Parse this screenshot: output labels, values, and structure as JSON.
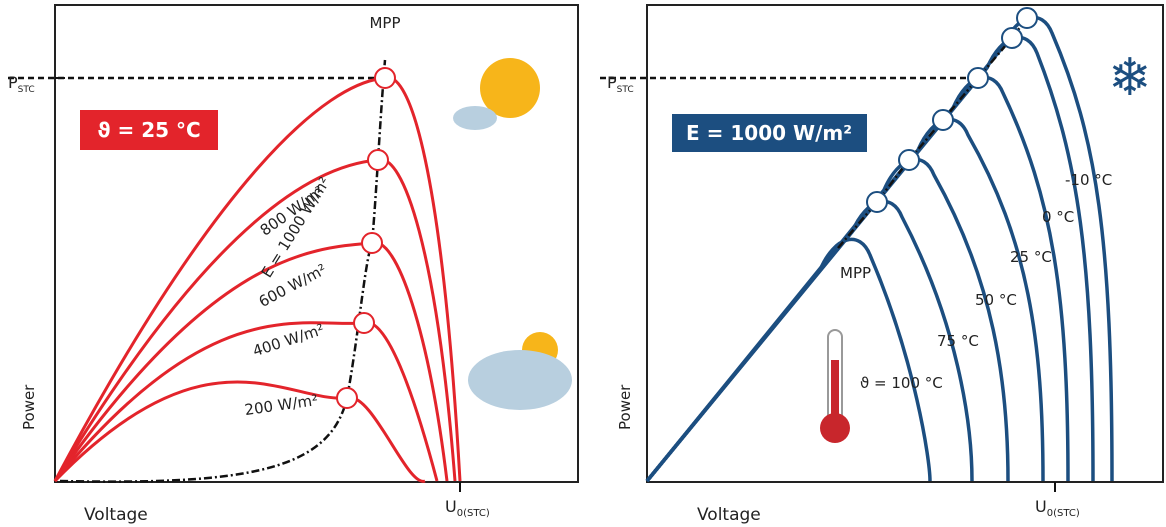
{
  "left": {
    "mpp_label": "MPP",
    "p_stc": {
      "main": "P",
      "sub": "STC"
    },
    "badge": "ϑ = 25 °C",
    "curve_labels": [
      "E = 1000 W/m²",
      "800 W/m²",
      "600 W/m²",
      "400 W/m²",
      "200 W/m²"
    ],
    "y_label": "Power",
    "x_label": "Voltage",
    "u0": {
      "main": "U",
      "sub": "0(STC)"
    }
  },
  "right": {
    "mpp_label": "MPP",
    "p_stc": {
      "main": "P",
      "sub": "STC"
    },
    "badge": "E = 1000 W/m²",
    "curve_labels": [
      "-10 °C",
      "0 °C",
      "25 °C",
      "50 °C",
      "75 °C",
      "ϑ = 100 °C"
    ],
    "y_label": "Power",
    "x_label": "Voltage",
    "u0": {
      "main": "U",
      "sub": "0(STC)"
    }
  }
}
